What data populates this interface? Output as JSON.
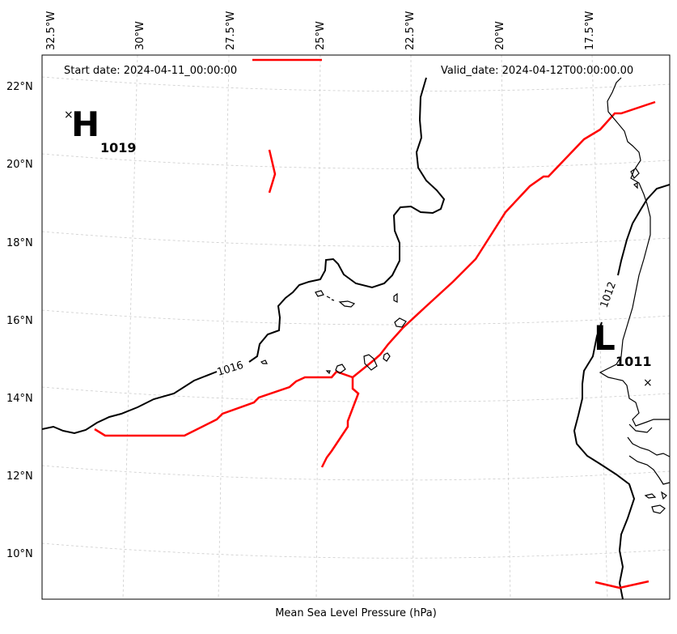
{
  "map": {
    "start_date": "Start date: 2024-04-11_00:00:00",
    "valid_date": "Valid_date: 2024-04-12T00:00:00.00",
    "bottom_label": "Mean Sea Level Pressure (hPa)",
    "lon_labels": [
      "32.5°W",
      "30°W",
      "27.5°W",
      "25°W",
      "22.5°W",
      "20°W",
      "17.5°W"
    ],
    "lat_labels": [
      "22°N",
      "20°N",
      "18°N",
      "16°N",
      "14°N",
      "12°N",
      "10°N"
    ],
    "isobar_labels": [
      "1016",
      "1012"
    ],
    "pressure_centers": [
      {
        "type": "H",
        "value": "1019"
      },
      {
        "type": "L",
        "value": "1011"
      }
    ],
    "colors": {
      "front": "#ff0000",
      "isobar": "#000000",
      "coast": "#000000",
      "grid": "#cccccc"
    }
  }
}
